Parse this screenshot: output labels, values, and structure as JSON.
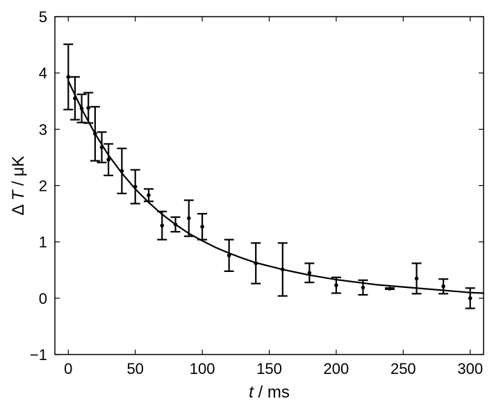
{
  "chart_data": {
    "type": "scatter",
    "title": "",
    "xlabel": {
      "variable": "t",
      "separator": " / ",
      "unit": "ms"
    },
    "ylabel": {
      "prefix": "Δ",
      "variable": "T",
      "separator": " / ",
      "unit": "μK"
    },
    "xlim": [
      -10,
      310
    ],
    "ylim": [
      -1,
      5
    ],
    "xticks": [
      0,
      50,
      100,
      150,
      200,
      250,
      300
    ],
    "yticks": [
      -1,
      0,
      1,
      2,
      3,
      4,
      5
    ],
    "xtick_labels": [
      "0",
      "50",
      "100",
      "150",
      "200",
      "250",
      "300"
    ],
    "ytick_labels": [
      "−1",
      "0",
      "1",
      "2",
      "3",
      "4",
      "5"
    ],
    "grid": false,
    "legend": "none",
    "colors": {
      "data": "#000000",
      "fit": "#000000",
      "axes": "#000000"
    },
    "series": [
      {
        "kind": "errorbar-points",
        "points": [
          {
            "x": 0,
            "y": 3.93,
            "err": 0.58
          },
          {
            "x": 5,
            "y": 3.55,
            "err": 0.38
          },
          {
            "x": 10,
            "y": 3.37,
            "err": 0.25
          },
          {
            "x": 15,
            "y": 3.38,
            "err": 0.27
          },
          {
            "x": 20,
            "y": 2.92,
            "err": 0.48
          },
          {
            "x": 25,
            "y": 2.68,
            "err": 0.27
          },
          {
            "x": 30,
            "y": 2.46,
            "err": 0.28
          },
          {
            "x": 40,
            "y": 2.26,
            "err": 0.4
          },
          {
            "x": 50,
            "y": 1.98,
            "err": 0.3
          },
          {
            "x": 60,
            "y": 1.83,
            "err": 0.11
          },
          {
            "x": 70,
            "y": 1.29,
            "err": 0.25
          },
          {
            "x": 80,
            "y": 1.31,
            "err": 0.13
          },
          {
            "x": 90,
            "y": 1.42,
            "err": 0.32
          },
          {
            "x": 100,
            "y": 1.27,
            "err": 0.23
          },
          {
            "x": 120,
            "y": 0.76,
            "err": 0.28
          },
          {
            "x": 140,
            "y": 0.62,
            "err": 0.36
          },
          {
            "x": 160,
            "y": 0.51,
            "err": 0.47
          },
          {
            "x": 180,
            "y": 0.45,
            "err": 0.17
          },
          {
            "x": 200,
            "y": 0.23,
            "err": 0.14
          },
          {
            "x": 220,
            "y": 0.19,
            "err": 0.13
          },
          {
            "x": 240,
            "y": 0.17,
            "err": 0.01
          },
          {
            "x": 260,
            "y": 0.35,
            "err": 0.27
          },
          {
            "x": 280,
            "y": 0.21,
            "err": 0.13
          },
          {
            "x": 300,
            "y": 0.0,
            "err": 0.18
          }
        ]
      },
      {
        "kind": "fit-line",
        "x": [
          0,
          10,
          20,
          30,
          40,
          50,
          60,
          70,
          80,
          90,
          100,
          110,
          120,
          130,
          140,
          150,
          160,
          170,
          180,
          190,
          200,
          210,
          220,
          230,
          240,
          250,
          260,
          270,
          280,
          290,
          300,
          310
        ],
        "y": [
          3.86,
          3.36,
          2.92,
          2.54,
          2.22,
          1.94,
          1.7,
          1.49,
          1.31,
          1.15,
          1.02,
          0.9,
          0.8,
          0.71,
          0.63,
          0.57,
          0.51,
          0.46,
          0.41,
          0.37,
          0.33,
          0.3,
          0.27,
          0.24,
          0.22,
          0.2,
          0.18,
          0.16,
          0.14,
          0.12,
          0.1,
          0.09
        ]
      }
    ]
  }
}
